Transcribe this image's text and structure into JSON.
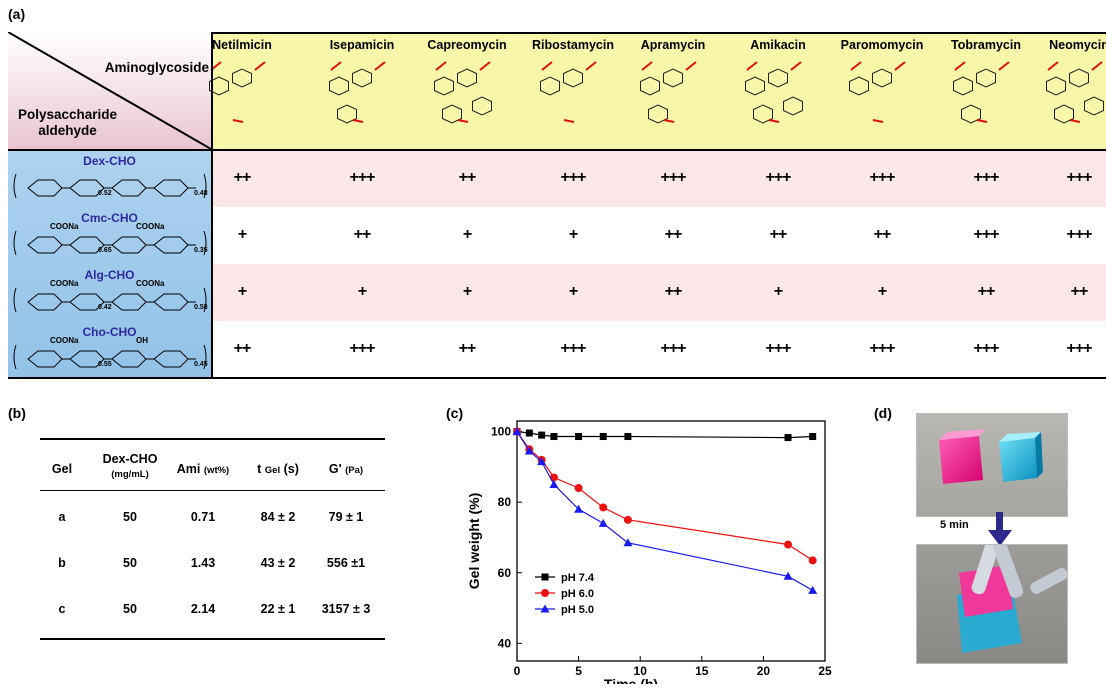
{
  "panels": {
    "a": "(a)",
    "b": "(b)",
    "c": "(c)",
    "d": "(d)"
  },
  "table_a": {
    "corner_top": "Aminoglycoside",
    "corner_bottom_line1": "Polysaccharide",
    "corner_bottom_line2": "aldehyde",
    "columns": [
      "Netilmicin",
      "Isepamicin",
      "Capreomycin",
      "Ribostamycin",
      "Apramycin",
      "Amikacin",
      "Paromomycin",
      "Tobramycin",
      "Neomycin"
    ],
    "rows": [
      {
        "name": "Dex-CHO",
        "sub_left": "0.52",
        "sub_right": "0.48",
        "values": [
          "++",
          "+++",
          "++",
          "+++",
          "+++",
          "+++",
          "+++",
          "+++",
          "+++"
        ]
      },
      {
        "name": "Cmc-CHO",
        "sub_left": "0.65",
        "sub_right": "0.35",
        "label1": "COONa",
        "label2": "COONa",
        "values": [
          "+",
          "++",
          "+",
          "+",
          "++",
          "++",
          "++",
          "+++",
          "+++"
        ]
      },
      {
        "name": "Alg-CHO",
        "sub_left": "0.42",
        "sub_right": "0.58",
        "label1": "COONa",
        "label2": "COONa",
        "values": [
          "+",
          "+",
          "+",
          "+",
          "++",
          "+",
          "+",
          "++",
          "++"
        ]
      },
      {
        "name": "Cho-CHO",
        "sub_left": "0.55",
        "sub_right": "0.45",
        "label1": "COONa",
        "label2": "OH",
        "values": [
          "++",
          "+++",
          "++",
          "+++",
          "+++",
          "+++",
          "+++",
          "+++",
          "+++"
        ]
      }
    ]
  },
  "table_b": {
    "headers": {
      "gel": "Gel",
      "dex": "Dex-CHO",
      "dex_unit": "(mg/mL)",
      "ami": "Ami",
      "ami_unit": "(wt%)",
      "t": "t",
      "t_sub": "Gel",
      "t_unit": "(s)",
      "g": "G'",
      "g_unit": "(Pa)"
    },
    "rows": [
      {
        "gel": "a",
        "dex": "50",
        "ami": "0.71",
        "t": "84 ± 2",
        "g": "79 ± 1"
      },
      {
        "gel": "b",
        "dex": "50",
        "ami": "1.43",
        "t": "43 ± 2",
        "g": "556 ±1"
      },
      {
        "gel": "c",
        "dex": "50",
        "ami": "2.14",
        "t": "22 ± 1",
        "g": "3157 ± 3"
      }
    ]
  },
  "chart_data": {
    "type": "line",
    "xlabel": "Time (h)",
    "ylabel": "Gel weight (%)",
    "xlim": [
      0,
      25
    ],
    "ylim": [
      35,
      103
    ],
    "xticks": [
      0,
      5,
      10,
      15,
      20,
      25
    ],
    "yticks": [
      40,
      60,
      80,
      100
    ],
    "legend_position": "bottom-left",
    "series": [
      {
        "name": "pH 7.4",
        "color": "#000000",
        "marker": "square",
        "x": [
          0,
          1,
          2,
          3,
          5,
          7,
          9,
          22,
          24
        ],
        "y": [
          100,
          99.6,
          99.0,
          98.6,
          98.6,
          98.6,
          98.6,
          98.3,
          98.6
        ]
      },
      {
        "name": "pH 6.0",
        "color": "#ee1111",
        "marker": "circle",
        "x": [
          0,
          1,
          2,
          3,
          5,
          7,
          9,
          22,
          24
        ],
        "y": [
          100,
          95.0,
          92.0,
          87.0,
          84.0,
          78.5,
          75.0,
          68.0,
          63.5
        ]
      },
      {
        "name": "pH 5.0",
        "color": "#1a1aee",
        "marker": "triangle",
        "x": [
          0,
          1,
          2,
          3,
          5,
          7,
          9,
          22,
          24
        ],
        "y": [
          100,
          94.5,
          91.5,
          85.0,
          78.0,
          74.0,
          68.5,
          59.0,
          55.0
        ]
      }
    ]
  },
  "panel_d": {
    "arrow_label": "5 min"
  }
}
